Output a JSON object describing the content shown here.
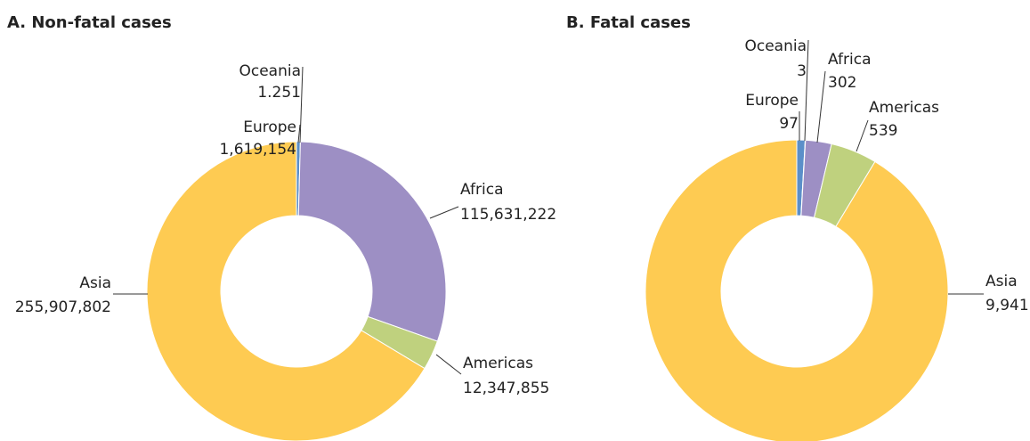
{
  "chart_data": [
    {
      "type": "donut",
      "title": "A. Non-fatal cases",
      "categories": [
        "Europe",
        "Oceania",
        "Africa",
        "Americas",
        "Asia"
      ],
      "values": [
        1619154,
        1251,
        115631222,
        12347855,
        255907802
      ],
      "value_labels": [
        "1,619,154",
        "1.251",
        "115,631,222",
        "12,347,855",
        "255,907,802"
      ],
      "colors": [
        "#5b8fc9",
        "#3d6f9e",
        "#9d8fc4",
        "#bfd17e",
        "#fecb52"
      ]
    },
    {
      "type": "donut",
      "title": "B.  Fatal cases",
      "categories": [
        "Europe",
        "Oceania",
        "Africa",
        "Americas",
        "Asia"
      ],
      "values": [
        97,
        3,
        302,
        539,
        9941
      ],
      "value_labels": [
        "97",
        "3",
        "302",
        "539",
        "9,941"
      ],
      "colors": [
        "#5b8fc9",
        "#3d6f9e",
        "#9d8fc4",
        "#bfd17e",
        "#fecb52"
      ]
    }
  ]
}
